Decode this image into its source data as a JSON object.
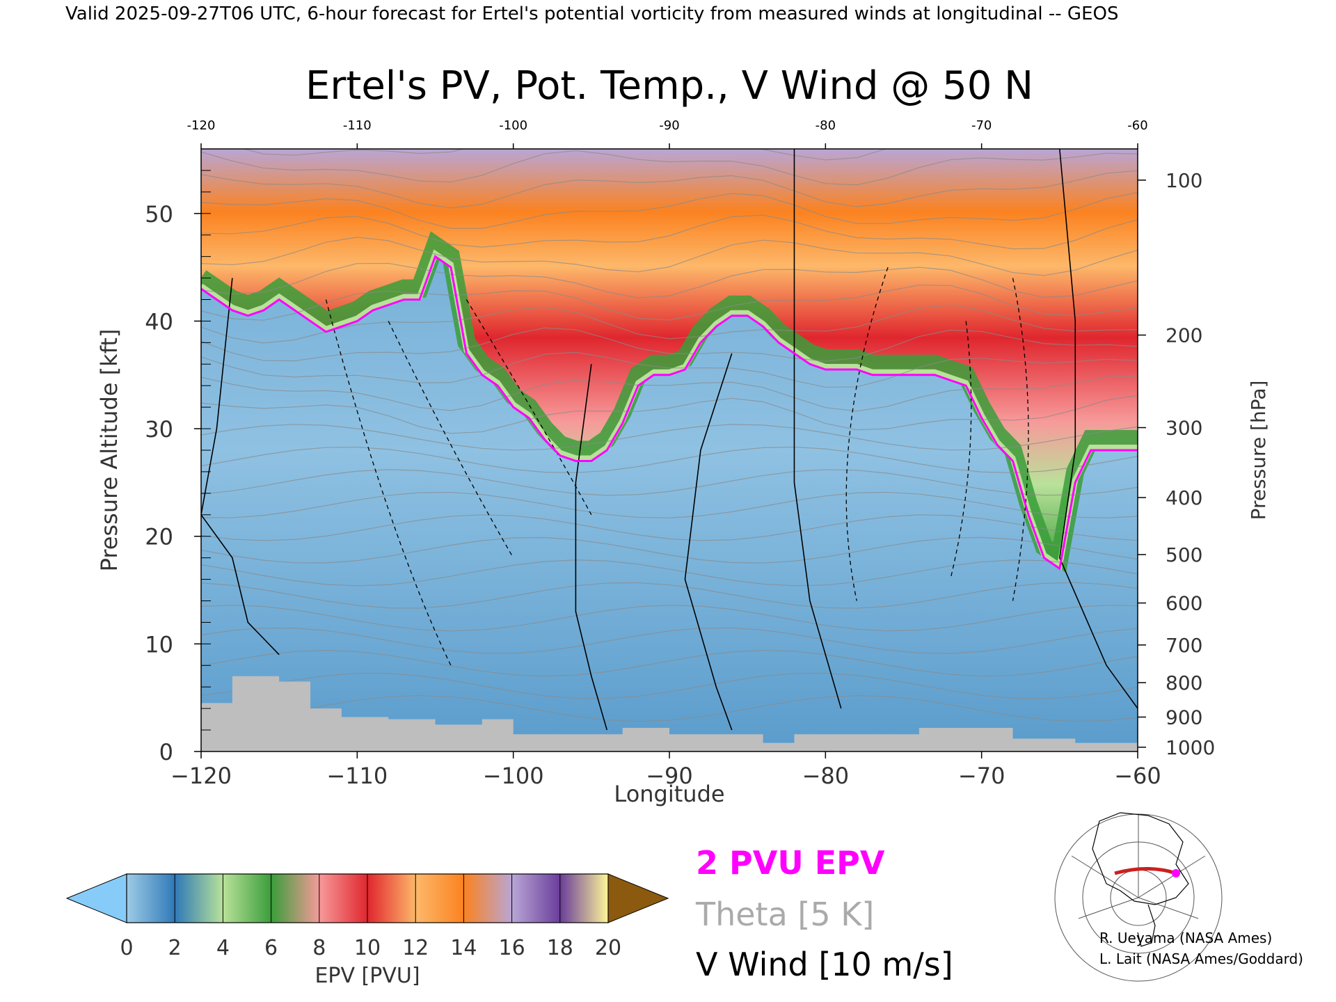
{
  "header": {
    "valid_line": "Valid 2025-09-27T06 UTC, 6-hour forecast for Ertel's potential vorticity from measured winds at longitudinal -- GEOS"
  },
  "chart_data": {
    "type": "heatmap",
    "title": "Ertel's PV, Pot. Temp., V Wind @ 50 N",
    "xlabel": "Longitude",
    "ylabel_left": "Pressure Altitude [kft]",
    "ylabel_right": "Pressure [hPa]",
    "xlim": [
      -120,
      -60
    ],
    "ylim": [
      0,
      56
    ],
    "x_ticks": [
      -120,
      -110,
      -100,
      -90,
      -80,
      -70,
      -60
    ],
    "y_ticks": [
      0,
      10,
      20,
      30,
      40,
      50
    ],
    "pressure_ticks": [
      {
        "p": 100,
        "kft": 53.1
      },
      {
        "p": 200,
        "kft": 38.7
      },
      {
        "p": 300,
        "kft": 30.1
      },
      {
        "p": 400,
        "kft": 23.6
      },
      {
        "p": 500,
        "kft": 18.3
      },
      {
        "p": 600,
        "kft": 13.8
      },
      {
        "p": 700,
        "kft": 9.9
      },
      {
        "p": 800,
        "kft": 6.4
      },
      {
        "p": 900,
        "kft": 3.2
      },
      {
        "p": 1000,
        "kft": 0.4
      }
    ],
    "pv2_tropopause": [
      [
        -120,
        43
      ],
      [
        -119,
        42
      ],
      [
        -118,
        41
      ],
      [
        -117,
        40.5
      ],
      [
        -116,
        41
      ],
      [
        -115,
        42
      ],
      [
        -114,
        41
      ],
      [
        -113,
        40
      ],
      [
        -112,
        39
      ],
      [
        -111,
        39.5
      ],
      [
        -110,
        40
      ],
      [
        -109,
        41
      ],
      [
        -108,
        41.5
      ],
      [
        -107,
        42
      ],
      [
        -106,
        42
      ],
      [
        -105,
        46
      ],
      [
        -104,
        45
      ],
      [
        -103,
        37
      ],
      [
        -102,
        35
      ],
      [
        -101,
        34
      ],
      [
        -100,
        32
      ],
      [
        -99,
        31
      ],
      [
        -98,
        29
      ],
      [
        -97,
        27.5
      ],
      [
        -96,
        27
      ],
      [
        -95,
        27
      ],
      [
        -94,
        28
      ],
      [
        -93,
        30.5
      ],
      [
        -92,
        34
      ],
      [
        -91,
        35
      ],
      [
        -90,
        35
      ],
      [
        -89,
        35.5
      ],
      [
        -88,
        38
      ],
      [
        -87,
        39.5
      ],
      [
        -86,
        40.5
      ],
      [
        -85,
        40.5
      ],
      [
        -84,
        39.5
      ],
      [
        -83,
        38
      ],
      [
        -82,
        37
      ],
      [
        -81,
        36
      ],
      [
        -80,
        35.5
      ],
      [
        -79,
        35.5
      ],
      [
        -78,
        35.5
      ],
      [
        -77,
        35
      ],
      [
        -76,
        35
      ],
      [
        -75,
        35
      ],
      [
        -74,
        35
      ],
      [
        -73,
        35
      ],
      [
        -72,
        34.5
      ],
      [
        -71,
        34
      ],
      [
        -70,
        31
      ],
      [
        -69,
        28.5
      ],
      [
        -68,
        27
      ],
      [
        -67,
        22
      ],
      [
        -66,
        18
      ],
      [
        -65,
        17
      ],
      [
        -64,
        25
      ],
      [
        -63,
        28
      ],
      [
        -62,
        28
      ],
      [
        -61,
        28
      ],
      [
        -60,
        28
      ]
    ],
    "v_wind_zero_contours": [
      [
        [
          -118,
          44
        ],
        [
          -119,
          30
        ],
        [
          -120,
          22
        ],
        [
          -118,
          18
        ],
        [
          -117,
          12
        ],
        [
          -115,
          9
        ]
      ],
      [
        [
          -95,
          36
        ],
        [
          -96,
          25
        ],
        [
          -96,
          13
        ],
        [
          -95,
          7
        ],
        [
          -94,
          2
        ]
      ],
      [
        [
          -86,
          37
        ],
        [
          -88,
          28
        ],
        [
          -89,
          16
        ],
        [
          -87,
          6
        ],
        [
          -86,
          2
        ]
      ],
      [
        [
          -82,
          56
        ],
        [
          -82,
          40
        ],
        [
          -82,
          25
        ],
        [
          -81,
          14
        ],
        [
          -79,
          4
        ]
      ],
      [
        [
          -65,
          56
        ],
        [
          -64,
          40
        ],
        [
          -64,
          28
        ],
        [
          -65,
          18
        ],
        [
          -62,
          8
        ],
        [
          -60,
          4
        ]
      ]
    ],
    "theta_label": "Theta [5 K]",
    "v_wind_label": "V Wind [10 m/s]",
    "pv_label": "2 PVU EPV"
  },
  "colorbar": {
    "label": "EPV [PVU]",
    "ticks": [
      "0",
      "2",
      "4",
      "6",
      "8",
      "10",
      "12",
      "14",
      "16",
      "18",
      "20"
    ],
    "colors": [
      "#9ecbe6",
      "#2f79b8",
      "#b9e29a",
      "#3a9d3a",
      "#f79a9a",
      "#e0262e",
      "#fdb86a",
      "#fb8220",
      "#b9a6d6",
      "#6a3d9a",
      "#fff799",
      "#8b5a0f"
    ],
    "under_color": "#87ccf8",
    "over_color": "#8b5a0f"
  },
  "legend": {
    "pv_color": "#ff00ff",
    "theta_color": "#aaaaaa",
    "wind_color": "#000000"
  },
  "credits": {
    "line1": "R. Ueyama (NASA Ames)",
    "line2": "L. Lait (NASA Ames/Goddard)"
  }
}
